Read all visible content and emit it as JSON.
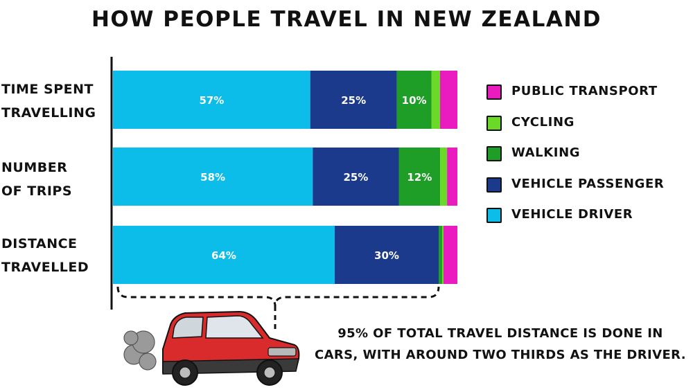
{
  "chart_data": {
    "type": "bar",
    "orientation": "horizontal",
    "stacked": true,
    "title": "HOW PEOPLE TRAVEL IN NEW ZEALAND",
    "categories": [
      [
        "TIME SPENT",
        "TRAVELLING"
      ],
      [
        "NUMBER",
        "OF TRIPS"
      ],
      [
        "DISTANCE",
        "TRAVELLED"
      ]
    ],
    "series": [
      {
        "name": "VEHICLE DRIVER",
        "color": "#0bbde8",
        "values": [
          57,
          58,
          64
        ],
        "labels": [
          "57%",
          "58%",
          "64%"
        ]
      },
      {
        "name": "VEHICLE PASSENGER",
        "color": "#1b3a8c",
        "values": [
          25,
          25,
          30
        ],
        "labels": [
          "25%",
          "25%",
          "30%"
        ]
      },
      {
        "name": "WALKING",
        "color": "#1f9e27",
        "values": [
          10,
          12,
          1
        ],
        "labels": [
          "10%",
          "12%",
          ""
        ]
      },
      {
        "name": "CYCLING",
        "color": "#6ad927",
        "values": [
          2.5,
          2,
          0.4
        ],
        "labels": [
          "",
          "",
          ""
        ]
      },
      {
        "name": "PUBLIC TRANSPORT",
        "color": "#ea1cc0",
        "values": [
          5,
          3,
          4
        ],
        "labels": [
          "",
          "",
          ""
        ]
      }
    ],
    "xlim": [
      0,
      100
    ],
    "legend_placement": "right",
    "grid": false
  },
  "legend": [
    {
      "label": "PUBLIC TRANSPORT",
      "color": "#ea1cc0"
    },
    {
      "label": "CYCLING",
      "color": "#6ad927"
    },
    {
      "label": "WALKING",
      "color": "#1f9e27"
    },
    {
      "label": "VEHICLE PASSENGER",
      "color": "#1b3a8c"
    },
    {
      "label": "VEHICLE DRIVER",
      "color": "#0bbde8"
    }
  ],
  "note": {
    "line1": "95% OF TOTAL TRAVEL DISTANCE IS DONE IN",
    "line2": "CARS, WITH AROUND TWO THIRDS AS THE DRIVER."
  },
  "illustration": {
    "icon": "red-suv-car-icon",
    "car_color": "#d92b2b"
  }
}
